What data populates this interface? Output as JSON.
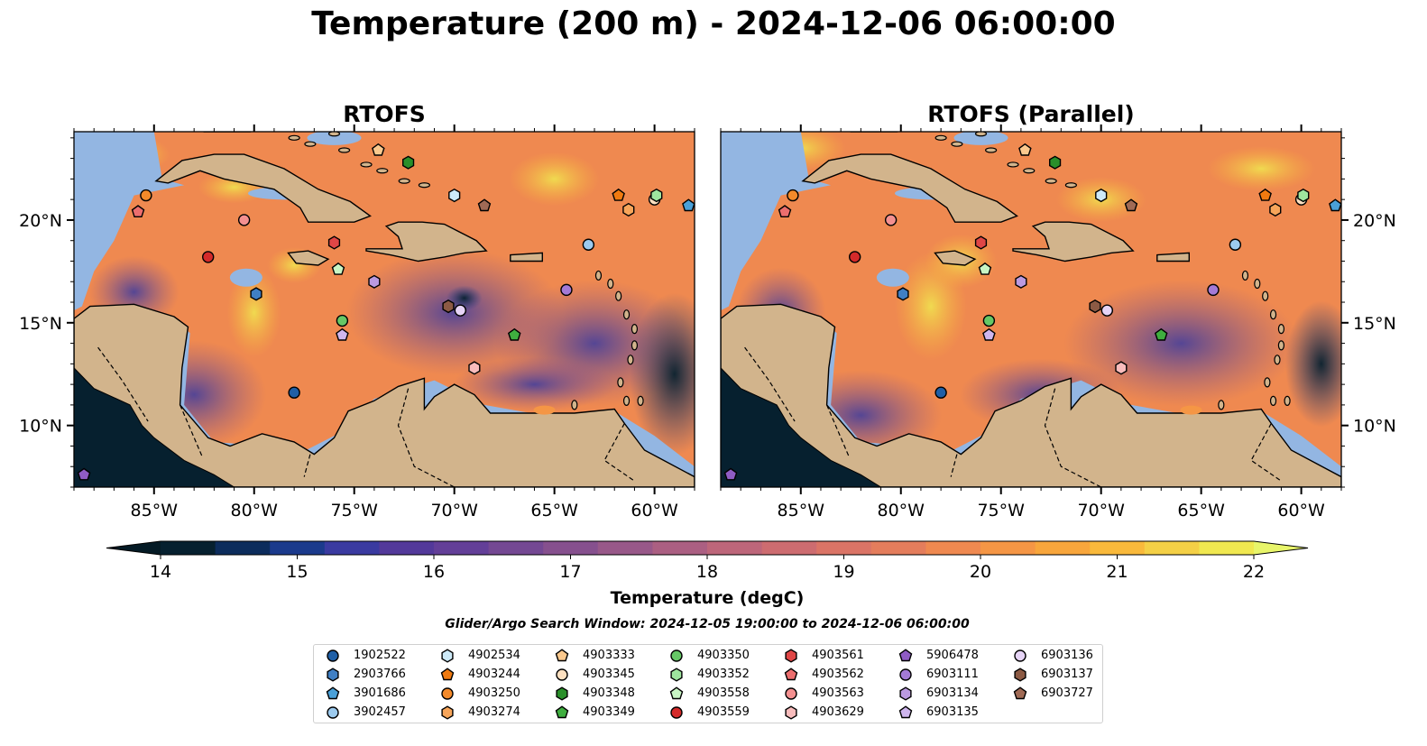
{
  "title": "Temperature (200 m) - 2024-12-06 06:00:00",
  "panels": [
    {
      "title": "RTOFS"
    },
    {
      "title": "RTOFS (Parallel)"
    }
  ],
  "axes": {
    "lon_ticks": [
      "85°W",
      "80°W",
      "75°W",
      "70°W",
      "65°W",
      "60°W"
    ],
    "lat_ticks": [
      "20°N",
      "15°N",
      "10°N"
    ],
    "lon_range": [
      -89,
      -58
    ],
    "lat_range": [
      7,
      24.3
    ]
  },
  "colorbar": {
    "label": "Temperature (degC)",
    "min": 14,
    "max": 22,
    "step": 0.5,
    "ticks": [
      "14",
      "15",
      "16",
      "17",
      "18",
      "19",
      "20",
      "21",
      "22"
    ],
    "extend": "both",
    "colors": [
      "#06202f",
      "#0c2c5c",
      "#1b3a8c",
      "#3a3aa0",
      "#53399a",
      "#633f98",
      "#744893",
      "#86508e",
      "#985889",
      "#ab5f82",
      "#bd667a",
      "#cd6c70",
      "#db7466",
      "#e47d5c",
      "#ef8950",
      "#f59645",
      "#f8a63c",
      "#f9b93b",
      "#f4d046",
      "#f0e850"
    ]
  },
  "search_window": "Glider/Argo Search Window: 2024-12-05 19:00:00 to 2024-12-06 06:00:00",
  "legend": [
    {
      "id": "1902522",
      "marker": "circle",
      "color": "#1f5fa6"
    },
    {
      "id": "2903766",
      "marker": "hexagon",
      "color": "#3f7fc4"
    },
    {
      "id": "3901686",
      "marker": "pentagon",
      "color": "#4aa0d8"
    },
    {
      "id": "3902457",
      "marker": "circle",
      "color": "#9ccaee"
    },
    {
      "id": "4902534",
      "marker": "hexagon",
      "color": "#cdeaf8"
    },
    {
      "id": "4903244",
      "marker": "pentagon",
      "color": "#f07a10"
    },
    {
      "id": "4903250",
      "marker": "circle",
      "color": "#f48a2a"
    },
    {
      "id": "4903274",
      "marker": "hexagon",
      "color": "#f7a55a"
    },
    {
      "id": "4903333",
      "marker": "pentagon",
      "color": "#fbc98e"
    },
    {
      "id": "4903345",
      "marker": "circle",
      "color": "#fde0c0"
    },
    {
      "id": "4903348",
      "marker": "hexagon",
      "color": "#2a8f2a"
    },
    {
      "id": "4903349",
      "marker": "pentagon",
      "color": "#3fae3f"
    },
    {
      "id": "4903350",
      "marker": "circle",
      "color": "#66c866"
    },
    {
      "id": "4903352",
      "marker": "hexagon",
      "color": "#9ee49e"
    },
    {
      "id": "4903558",
      "marker": "pentagon",
      "color": "#c8f5c4"
    },
    {
      "id": "4903559",
      "marker": "circle",
      "color": "#d42a2a"
    },
    {
      "id": "4903561",
      "marker": "hexagon",
      "color": "#e04646"
    },
    {
      "id": "4903562",
      "marker": "pentagon",
      "color": "#ec6e6e"
    },
    {
      "id": "4903563",
      "marker": "circle",
      "color": "#f49090"
    },
    {
      "id": "4903629",
      "marker": "hexagon",
      "color": "#f8bcbc"
    },
    {
      "id": "5906478",
      "marker": "pentagon",
      "color": "#8f5cc4"
    },
    {
      "id": "6903111",
      "marker": "circle",
      "color": "#a47ad6"
    },
    {
      "id": "6903134",
      "marker": "hexagon",
      "color": "#bb9ae0"
    },
    {
      "id": "6903135",
      "marker": "pentagon",
      "color": "#cfb6ee"
    },
    {
      "id": "6903136",
      "marker": "circle",
      "color": "#e6d4f6"
    },
    {
      "id": "6903137",
      "marker": "hexagon",
      "color": "#8c5a44"
    },
    {
      "id": "6903727",
      "marker": "pentagon",
      "color": "#a06a55"
    }
  ],
  "observations": [
    {
      "id": "1902522",
      "lon": -78.0,
      "lat": 11.6
    },
    {
      "id": "2903766",
      "lon": -79.9,
      "lat": 16.4
    },
    {
      "id": "3901686",
      "lon": -58.3,
      "lat": 20.7
    },
    {
      "id": "3902457",
      "lon": -63.3,
      "lat": 18.8
    },
    {
      "id": "4902534",
      "lon": -70.0,
      "lat": 21.2
    },
    {
      "id": "4903244",
      "lon": -61.8,
      "lat": 21.2
    },
    {
      "id": "4903250",
      "lon": -85.4,
      "lat": 21.2
    },
    {
      "id": "4903274",
      "lon": -61.3,
      "lat": 20.5
    },
    {
      "id": "4903333",
      "lon": -73.8,
      "lat": 23.4
    },
    {
      "id": "4903345",
      "lon": -60.0,
      "lat": 21.0
    },
    {
      "id": "4903348",
      "lon": -72.3,
      "lat": 22.8
    },
    {
      "id": "4903349",
      "lon": -67.0,
      "lat": 14.4
    },
    {
      "id": "4903350",
      "lon": -75.6,
      "lat": 15.1
    },
    {
      "id": "4903352",
      "lon": -59.9,
      "lat": 21.2
    },
    {
      "id": "4903558",
      "lon": -75.8,
      "lat": 17.6
    },
    {
      "id": "4903559",
      "lon": -82.3,
      "lat": 18.2
    },
    {
      "id": "4903561",
      "lon": -76.0,
      "lat": 18.9
    },
    {
      "id": "4903562",
      "lon": -85.8,
      "lat": 20.4
    },
    {
      "id": "4903563",
      "lon": -80.5,
      "lat": 20.0
    },
    {
      "id": "4903629",
      "lon": -69.0,
      "lat": 12.8
    },
    {
      "id": "5906478",
      "lon": -88.5,
      "lat": 7.6
    },
    {
      "id": "6903111",
      "lon": -64.4,
      "lat": 16.6
    },
    {
      "id": "6903134",
      "lon": -74.0,
      "lat": 17.0
    },
    {
      "id": "6903135",
      "lon": -75.6,
      "lat": 14.4
    },
    {
      "id": "6903136",
      "lon": -69.7,
      "lat": 15.6
    },
    {
      "id": "6903137",
      "lon": -70.3,
      "lat": 15.8
    },
    {
      "id": "6903727",
      "lon": -68.5,
      "lat": 20.7
    }
  ]
}
